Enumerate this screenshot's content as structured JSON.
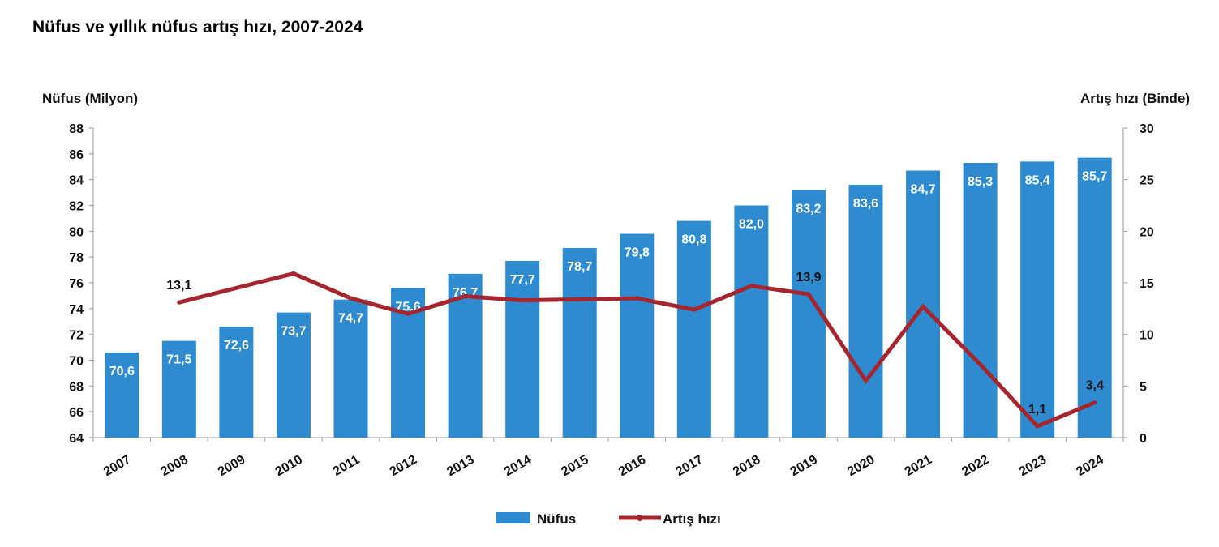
{
  "chart_data": {
    "type": "bar+line",
    "title": "Nüfus ve yıllık nüfus artış hızı, 2007-2024",
    "ylabel_left": "Nüfus (Milyon)",
    "ylabel_right": "Artış hızı (Binde)",
    "ylim_left": [
      64,
      88
    ],
    "yticks_left": [
      64,
      66,
      68,
      70,
      72,
      74,
      76,
      78,
      80,
      82,
      84,
      86,
      88
    ],
    "ylim_right": [
      0,
      30
    ],
    "yticks_right": [
      0,
      5,
      10,
      15,
      20,
      25,
      30
    ],
    "categories": [
      "2007",
      "2008",
      "2009",
      "2010",
      "2011",
      "2012",
      "2013",
      "2014",
      "2015",
      "2016",
      "2017",
      "2018",
      "2019",
      "2020",
      "2021",
      "2022",
      "2023",
      "2024"
    ],
    "series": [
      {
        "name": "Nüfus",
        "type": "bar",
        "axis": "left",
        "color": "#2e8bd0",
        "values": [
          70.6,
          71.5,
          72.6,
          73.7,
          74.7,
          75.6,
          76.7,
          77.7,
          78.7,
          79.8,
          80.8,
          82.0,
          83.2,
          83.6,
          84.7,
          85.3,
          85.4,
          85.7
        ],
        "labels": [
          "70,6",
          "71,5",
          "72,6",
          "73,7",
          "74,7",
          "75,6",
          "76,7",
          "77,7",
          "78,7",
          "79,8",
          "80,8",
          "82,0",
          "83,2",
          "83,6",
          "84,7",
          "85,3",
          "85,4",
          "85,7"
        ]
      },
      {
        "name": "Artış hızı",
        "type": "line",
        "axis": "right",
        "color": "#a5262e",
        "values": [
          null,
          13.1,
          14.5,
          15.9,
          13.5,
          12.0,
          13.7,
          13.3,
          13.4,
          13.5,
          12.4,
          14.7,
          13.9,
          5.5,
          12.7,
          7.1,
          1.1,
          3.4
        ],
        "labels": [
          null,
          "13,1",
          null,
          null,
          null,
          null,
          null,
          null,
          null,
          null,
          null,
          null,
          "13,9",
          null,
          null,
          null,
          "1,1",
          "3,4"
        ]
      }
    ],
    "legend_position": "bottom",
    "grid": false
  }
}
